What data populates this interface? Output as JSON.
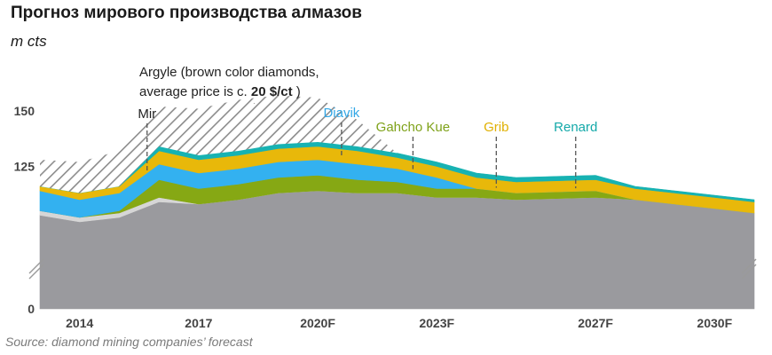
{
  "title": "Прогноз мирового производства алмазов",
  "unit": "m cts",
  "source": "Source: diamond mining companies’ forecast",
  "argyle_note": {
    "line1": "Argyle (brown color diamonds,",
    "line2_prefix": "average price is c. ",
    "line2_bold": "20 $/ct",
    "line2_suffix": " )"
  },
  "chart_data": {
    "type": "area",
    "stacked": true,
    "axis_break": true,
    "x": [
      2013,
      2014,
      2015,
      2016,
      2017,
      2018,
      2019,
      2020,
      2021,
      2022,
      2023,
      2024,
      2025,
      2026,
      2027,
      2028,
      2029,
      2030,
      2031
    ],
    "x_ticks": [
      {
        "x": 2014,
        "label": "2014"
      },
      {
        "x": 2017,
        "label": "2017"
      },
      {
        "x": 2020,
        "label": "2020F"
      },
      {
        "x": 2023,
        "label": "2023F"
      },
      {
        "x": 2027,
        "label": "2027F"
      },
      {
        "x": 2030,
        "label": "2030F"
      }
    ],
    "y_ticks": [
      {
        "value": 0,
        "label": "0"
      },
      {
        "value": 125,
        "label": "125"
      },
      {
        "value": 150,
        "label": "150"
      }
    ],
    "ylim": [
      0,
      150
    ],
    "series": [
      {
        "color": "#9a9a9e",
        "values": [
          103,
          100,
          102,
          109,
          108,
          110,
          113,
          114,
          113,
          113,
          111,
          111,
          110,
          110.5,
          111,
          110,
          108,
          106,
          104
        ]
      },
      {
        "color": "#d6d6d6",
        "values": [
          2,
          2,
          2,
          2,
          0,
          0,
          0,
          0,
          0,
          0,
          0,
          0,
          0,
          0,
          0,
          0,
          0,
          0,
          0
        ]
      },
      {
        "color": "#86a814",
        "values": [
          0,
          0,
          1,
          8,
          7,
          7,
          7,
          7,
          6,
          5,
          4,
          4,
          3,
          3,
          3,
          0,
          0,
          0,
          0
        ]
      },
      {
        "color": "#33b1f0",
        "values": [
          9,
          8,
          8,
          7,
          7,
          7,
          7,
          7,
          7,
          6,
          5,
          0,
          0,
          0,
          0,
          0,
          0,
          0,
          0
        ]
      },
      {
        "color": "#e8b80a",
        "values": [
          2,
          3,
          3,
          6,
          6,
          6,
          6,
          6,
          6,
          5,
          5,
          5,
          5,
          5,
          5,
          5,
          5,
          5,
          5
        ]
      },
      {
        "color": "#17b2b2",
        "values": [
          0,
          0,
          0,
          2,
          2,
          2,
          2,
          2,
          2,
          2,
          2,
          2,
          2,
          2,
          2,
          1,
          1,
          1,
          1
        ]
      },
      {
        "color": "#8c8c8c",
        "hatched": true,
        "values": [
          12,
          14,
          16,
          18,
          21,
          23,
          22,
          20,
          12,
          0,
          0,
          0,
          0,
          0,
          0,
          0,
          0,
          0,
          0
        ]
      }
    ],
    "annotations": [
      {
        "label": "Mir",
        "x": 2015.7,
        "color": "#222222"
      },
      {
        "label": "Diavik",
        "x": 2020.6,
        "color": "#33a7e6"
      },
      {
        "label": "Gahcho Kue",
        "x": 2022.4,
        "color": "#7fa21a"
      },
      {
        "label": "Grib",
        "x": 2024.5,
        "color": "#e0b000"
      },
      {
        "label": "Renard",
        "x": 2026.5,
        "color": "#14a9a9"
      }
    ],
    "argyle_marker_x": 2018.4
  }
}
